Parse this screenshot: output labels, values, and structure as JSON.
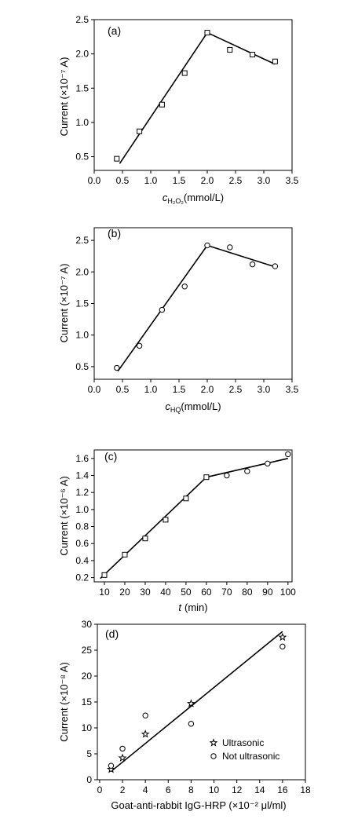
{
  "chart_data": [
    {
      "type": "scatter",
      "panel_label": "(a)",
      "ylabel": "Current (×10⁻⁷ A)",
      "xlabel_var": "c",
      "xlabel_sub": "H₂O₂",
      "xlabel_unit": "(mmol/L)",
      "xlim": [
        0.0,
        3.5
      ],
      "ylim": [
        0.3,
        2.5
      ],
      "xticks": [
        "0.0",
        "0.5",
        "1.0",
        "1.5",
        "2.0",
        "2.5",
        "3.0",
        "3.5"
      ],
      "yticks": [
        "0.5",
        "1.0",
        "1.5",
        "2.0",
        "2.5"
      ],
      "marker": "square",
      "series": [
        {
          "x": [
            0.4,
            0.8,
            1.2,
            1.6,
            2.0,
            2.4,
            2.8,
            3.2
          ],
          "y": [
            0.47,
            0.87,
            1.26,
            1.72,
            2.31,
            2.06,
            1.99,
            1.89
          ]
        }
      ],
      "fit_lines": [
        [
          [
            0.45,
            0.4
          ],
          [
            2.0,
            2.31
          ]
        ],
        [
          [
            2.0,
            2.31
          ],
          [
            3.2,
            1.85
          ]
        ]
      ]
    },
    {
      "type": "scatter",
      "panel_label": "(b)",
      "ylabel": "Current (×10⁻⁷ A)",
      "xlabel_var": "c",
      "xlabel_sub": "HQ",
      "xlabel_unit": "(mmol/L)",
      "xlim": [
        0.0,
        3.5
      ],
      "ylim": [
        0.3,
        2.7
      ],
      "xticks": [
        "0.0",
        "0.5",
        "1.0",
        "1.5",
        "2.0",
        "2.5",
        "3.0",
        "3.5"
      ],
      "yticks": [
        "0.5",
        "1.0",
        "1.5",
        "2.0",
        "2.5"
      ],
      "marker": "circle",
      "series": [
        {
          "x": [
            0.4,
            0.8,
            1.2,
            1.6,
            2.0,
            2.4,
            2.8,
            3.2
          ],
          "y": [
            0.48,
            0.83,
            1.4,
            1.77,
            2.42,
            2.39,
            2.12,
            2.09
          ]
        }
      ],
      "fit_lines": [
        [
          [
            0.42,
            0.43
          ],
          [
            2.0,
            2.42
          ]
        ],
        [
          [
            2.0,
            2.42
          ],
          [
            3.2,
            2.08
          ]
        ]
      ]
    },
    {
      "type": "scatter",
      "panel_label": "(c)",
      "ylabel": "Current (×10⁻⁶ A)",
      "xlabel_var": "t",
      "xlabel_sub": "",
      "xlabel_unit": "(min)",
      "xlim": [
        5,
        102
      ],
      "ylim": [
        0.15,
        1.7
      ],
      "xticks": [
        "10",
        "20",
        "30",
        "40",
        "50",
        "60",
        "70",
        "80",
        "90",
        "100"
      ],
      "yticks": [
        "0.2",
        "0.4",
        "0.6",
        "0.8",
        "1.0",
        "1.2",
        "1.4",
        "1.6"
      ],
      "marker": "mixed",
      "series": [
        {
          "marker": "square",
          "x": [
            10,
            20,
            30,
            40,
            50,
            60
          ],
          "y": [
            0.23,
            0.47,
            0.66,
            0.88,
            1.13,
            1.38
          ]
        },
        {
          "marker": "circle",
          "x": [
            70,
            80,
            90,
            100
          ],
          "y": [
            1.4,
            1.45,
            1.54,
            1.65
          ]
        }
      ],
      "fit_lines": [
        [
          [
            8,
            0.19
          ],
          [
            60,
            1.38
          ]
        ],
        [
          [
            60,
            1.38
          ],
          [
            100,
            1.6
          ]
        ]
      ]
    },
    {
      "type": "scatter",
      "panel_label": "(d)",
      "ylabel": "Current (×10⁻⁸ A)",
      "xlabel_var": "",
      "xlabel_sub": "",
      "xlabel_unit": "Goat-anti-rabbit IgG-HRP (×10⁻² μl/ml)",
      "xlim": [
        -0.2,
        18
      ],
      "ylim": [
        0,
        30
      ],
      "xticks": [
        "0",
        "2",
        "4",
        "6",
        "8",
        "10",
        "12",
        "14",
        "16",
        "18"
      ],
      "yticks": [
        "0",
        "5",
        "10",
        "15",
        "20",
        "25",
        "30"
      ],
      "legend_position": "bottom-right",
      "series": [
        {
          "name": "Ultrasonic",
          "marker": "star",
          "x": [
            1,
            2,
            4,
            8,
            16
          ],
          "y": [
            2.0,
            4.2,
            8.8,
            14.7,
            27.5
          ]
        },
        {
          "name": "Not ultrasonic",
          "marker": "circle",
          "x": [
            1,
            2,
            4,
            8,
            16
          ],
          "y": [
            2.7,
            6.0,
            12.4,
            10.8,
            25.7
          ]
        }
      ],
      "fit_lines": [
        [
          [
            1,
            1.6
          ],
          [
            16,
            28.6
          ]
        ]
      ]
    }
  ]
}
